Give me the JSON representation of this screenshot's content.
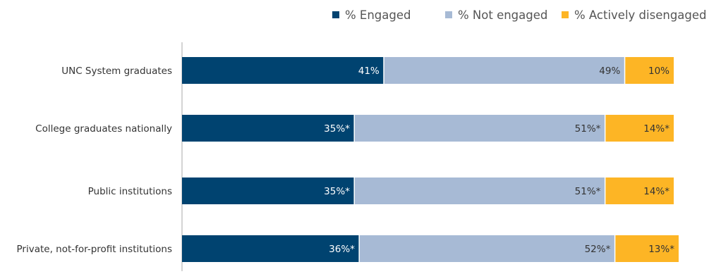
{
  "chart_data": {
    "type": "bar",
    "orientation": "horizontal",
    "stacked": true,
    "xlim": [
      0,
      100
    ],
    "grid": false,
    "legend_position": "top-right",
    "categories": [
      "UNC System graduates",
      "College graduates nationally",
      "Public institutions",
      "Private, not-for-profit institutions"
    ],
    "series": [
      {
        "name": "% Engaged",
        "color": "#004370",
        "label_color": "#ffffff",
        "values": [
          41,
          35,
          35,
          36
        ],
        "labels": [
          "41%",
          "35%*",
          "35%*",
          "36%*"
        ]
      },
      {
        "name": "% Not engaged",
        "color": "#a7bad5",
        "label_color": "#333333",
        "values": [
          49,
          51,
          51,
          52
        ],
        "labels": [
          "49%",
          "51%*",
          "51%*",
          "52%*"
        ]
      },
      {
        "name": "% Actively disengaged",
        "color": "#fdb525",
        "label_color": "#333333",
        "values": [
          10,
          14,
          14,
          13
        ],
        "labels": [
          "10%",
          "14%*",
          "14%*",
          "13%*"
        ]
      }
    ]
  }
}
